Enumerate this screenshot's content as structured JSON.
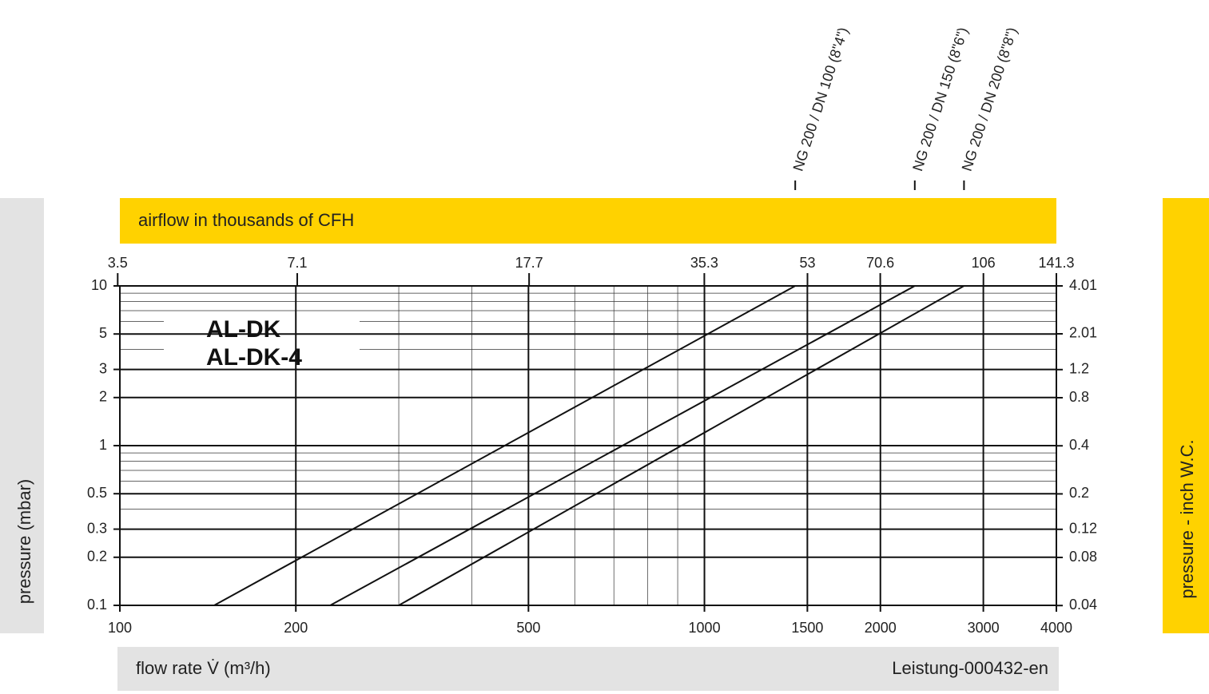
{
  "chart_data": {
    "type": "line",
    "log_x": true,
    "log_y": true,
    "grid": true,
    "minor_grid": true,
    "annotations": [
      "AL-DK",
      "AL-DK-4"
    ],
    "xlabel": "flow rate V̇ (m³/h)",
    "ylabel": "pressure (mbar)",
    "x2label": "airflow in thousands of CFH",
    "y2label": "pressure  - inch W.C.",
    "footnote": "Leistung-000432-en",
    "xlim": [
      100,
      4000
    ],
    "xticks": [
      100,
      200,
      500,
      1000,
      1500,
      2000,
      3000,
      4000
    ],
    "ylim": [
      0.1,
      10
    ],
    "yticks": [
      10,
      5,
      3,
      2,
      1,
      0.5,
      0.3,
      0.2,
      0.1
    ],
    "x2lim": [
      3.53,
      141.3
    ],
    "x2ticks": [
      3.5,
      7.1,
      17.7,
      35.3,
      53,
      70.6,
      106,
      141.3
    ],
    "y2lim": [
      0.0401,
      4.01
    ],
    "y2ticks": [
      4.01,
      2.01,
      1.2,
      0.8,
      0.4,
      0.2,
      0.12,
      0.08,
      0.04
    ],
    "series": [
      {
        "name": "NG 200 / DN 100 (8\"4\")",
        "color": "#111111",
        "x": [
          145,
          1430
        ],
        "values": [
          0.1,
          10
        ]
      },
      {
        "name": "NG 200 / DN 150 (8\"6\")",
        "color": "#111111",
        "x": [
          229,
          2290
        ],
        "values": [
          0.1,
          10
        ]
      },
      {
        "name": "NG 200 / DN 200 (8\"8\")",
        "color": "#111111",
        "x": [
          300,
          2780
        ],
        "values": [
          0.1,
          10
        ]
      }
    ]
  }
}
